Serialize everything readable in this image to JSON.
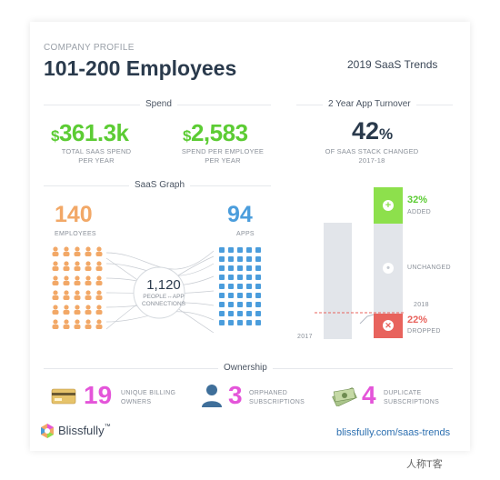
{
  "header": {
    "eyebrow": "COMPANY PROFILE",
    "title": "101-200 Employees",
    "trends": "2019 SaaS Trends"
  },
  "spend": {
    "section_label": "Spend",
    "total": {
      "symbol": "$",
      "value": "361.3k",
      "caption1": "TOTAL SAAS SPEND",
      "caption2": "PER YEAR"
    },
    "per_employee": {
      "symbol": "$",
      "value": "2,583",
      "caption1": "SPEND PER EMPLOYEE",
      "caption2": "PER YEAR"
    }
  },
  "turnover": {
    "section_label": "2 Year App Turnover",
    "percent": "42",
    "percent_sign": "%",
    "caption1": "OF SAAS STACK CHANGED",
    "caption2": "2017-18",
    "added_pct": "32%",
    "added_label": "ADDED",
    "unchanged_label": "UNCHANGED",
    "dropped_pct": "22%",
    "dropped_label": "DROPPED",
    "year_2017": "2017",
    "year_2018": "2018",
    "colors": {
      "added": "#8de04c",
      "dropped": "#e8635d",
      "bar": "#e2e5ea"
    }
  },
  "graph": {
    "section_label": "SaaS Graph",
    "employees_value": "140",
    "employees_label": "EMPLOYEES",
    "apps_value": "94",
    "apps_label": "APPS",
    "connections_value": "1,120",
    "connections_label1": "PEOPLE↔APP",
    "connections_label2": "CONNECTIONS",
    "colors": {
      "people": "#f2a867",
      "apps": "#4b9ddc"
    }
  },
  "ownership": {
    "section_label": "Ownership",
    "items": [
      {
        "icon": "credit-card-icon",
        "value": "19",
        "label1": "UNIQUE BILLING",
        "label2": "OWNERS"
      },
      {
        "icon": "person-icon",
        "value": "3",
        "label1": "ORPHANED",
        "label2": "SUBSCRIPTIONS"
      },
      {
        "icon": "money-icon",
        "value": "4",
        "label1": "DUPLICATE",
        "label2": "SUBSCRIPTIONS"
      }
    ]
  },
  "footer": {
    "brand": "Blissfully",
    "tm": "™",
    "link": "blissfully.com/saas-trends",
    "watermark": "人称T客"
  }
}
